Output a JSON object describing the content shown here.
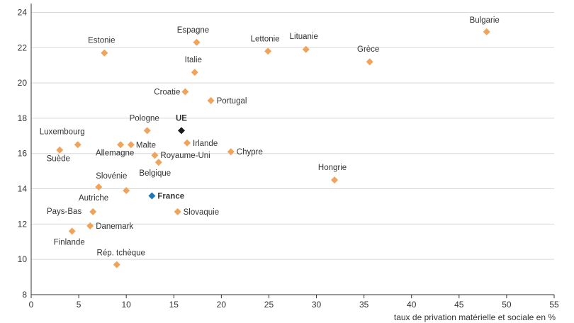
{
  "chart_data": {
    "type": "scatter",
    "xlabel": "taux de privation matérielle et sociale en %",
    "ylabel": "",
    "xlim": [
      0,
      55
    ],
    "ylim": [
      8,
      24.5
    ],
    "xticks": [
      0,
      5,
      10,
      15,
      20,
      25,
      30,
      35,
      40,
      45,
      50,
      55
    ],
    "yticks": [
      8,
      10,
      12,
      14,
      16,
      18,
      20,
      22,
      24
    ],
    "grid": "horizontal",
    "colors": {
      "default": "#f0a35b",
      "ue": "#1a1a1a",
      "france": "#1f77b4"
    },
    "points": [
      {
        "label": "Bulgarie",
        "x": 47.9,
        "y": 22.9
      },
      {
        "label": "Espagne",
        "x": 17.4,
        "y": 22.3
      },
      {
        "label": "Estonie",
        "x": 7.7,
        "y": 21.7
      },
      {
        "label": "Lettonie",
        "x": 24.9,
        "y": 21.8
      },
      {
        "label": "Lituanie",
        "x": 28.9,
        "y": 21.9
      },
      {
        "label": "Grèce",
        "x": 35.6,
        "y": 21.2
      },
      {
        "label": "Italie",
        "x": 17.2,
        "y": 20.6
      },
      {
        "label": "Croatie",
        "x": 16.2,
        "y": 19.5
      },
      {
        "label": "Portugal",
        "x": 18.9,
        "y": 19.0
      },
      {
        "label": "Pologne",
        "x": 12.2,
        "y": 17.3
      },
      {
        "label": "UE",
        "x": 15.8,
        "y": 17.3,
        "kind": "ue"
      },
      {
        "label": "Luxembourg",
        "x": 4.9,
        "y": 16.5
      },
      {
        "label": "Suède",
        "x": 3.0,
        "y": 16.2
      },
      {
        "label": "Allemagne",
        "x": 9.4,
        "y": 16.5
      },
      {
        "label": "Malte",
        "x": 10.5,
        "y": 16.5
      },
      {
        "label": "Irlande",
        "x": 16.4,
        "y": 16.6
      },
      {
        "label": "Royaume-Uni",
        "x": 13.0,
        "y": 15.9
      },
      {
        "label": "Belgique",
        "x": 13.4,
        "y": 15.5
      },
      {
        "label": "Chypre",
        "x": 21.0,
        "y": 16.1
      },
      {
        "label": "Hongrie",
        "x": 31.9,
        "y": 14.5
      },
      {
        "label": "Slovénie",
        "x": 7.1,
        "y": 14.1
      },
      {
        "label": "Autriche",
        "x": 10.0,
        "y": 13.9
      },
      {
        "label": "France",
        "x": 12.7,
        "y": 13.6,
        "kind": "france"
      },
      {
        "label": "Pays-Bas",
        "x": 6.5,
        "y": 12.7
      },
      {
        "label": "Slovaquie",
        "x": 15.4,
        "y": 12.7
      },
      {
        "label": "Danemark",
        "x": 6.2,
        "y": 11.9
      },
      {
        "label": "Finlande",
        "x": 4.3,
        "y": 11.6
      },
      {
        "label": "Rép. tchèque",
        "x": 9.0,
        "y": 9.7
      }
    ]
  }
}
